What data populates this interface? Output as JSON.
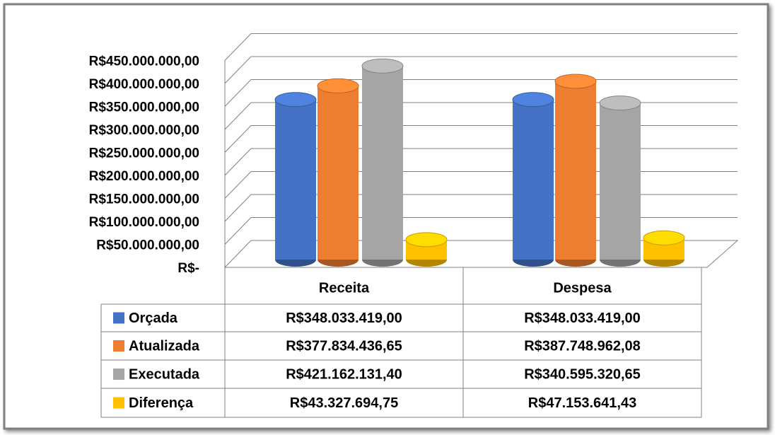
{
  "chart_data": {
    "type": "bar",
    "categories": [
      "Receita",
      "Despesa"
    ],
    "series": [
      {
        "name": "Orçada",
        "color": "#4472c4",
        "values": [
          348033419,
          348033419
        ],
        "value_labels": [
          "R$348.033.419,00",
          "R$348.033.419,00"
        ]
      },
      {
        "name": "Atualizada",
        "color": "#ed7d31",
        "values": [
          377834436.65,
          387748962.08
        ],
        "value_labels": [
          "R$377.834.436,65",
          "R$387.748.962,08"
        ]
      },
      {
        "name": "Executada",
        "color": "#a5a5a5",
        "values": [
          421162131.4,
          340595320.65
        ],
        "value_labels": [
          "R$421.162.131,40",
          "R$340.595.320,65"
        ]
      },
      {
        "name": "Diferença",
        "color": "#ffc000",
        "values": [
          43327694.75,
          47153641.43
        ],
        "value_labels": [
          "R$43.327.694,75",
          "R$47.153.641,43"
        ]
      }
    ],
    "ylim": [
      0,
      450000000
    ],
    "yticks": [
      {
        "value": 0,
        "label": "R$-"
      },
      {
        "value": 50000000,
        "label": "R$50.000.000,00"
      },
      {
        "value": 100000000,
        "label": "R$100.000.000,00"
      },
      {
        "value": 150000000,
        "label": "R$150.000.000,00"
      },
      {
        "value": 200000000,
        "label": "R$200.000.000,00"
      },
      {
        "value": 250000000,
        "label": "R$250.000.000,00"
      },
      {
        "value": 300000000,
        "label": "R$300.000.000,00"
      },
      {
        "value": 350000000,
        "label": "R$350.000.000,00"
      },
      {
        "value": 400000000,
        "label": "R$400.000.000,00"
      },
      {
        "value": 450000000,
        "label": "R$450.000.000,00"
      }
    ],
    "grid": true
  }
}
